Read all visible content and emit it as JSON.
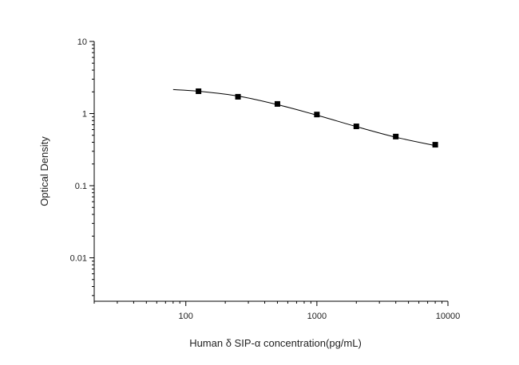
{
  "chart_data": {
    "type": "scatter",
    "x_label": "Human δ SIP-α  concentration(pg/mL)",
    "y_label": "Optical Density",
    "x_log": true,
    "y_log": true,
    "xlim": [
      20,
      10000
    ],
    "xticks": [
      100,
      1000,
      10000
    ],
    "ylim": [
      0.0025,
      10
    ],
    "yticks": [
      0.01,
      0.1,
      1,
      10
    ],
    "minor_ticks": true,
    "series": [
      {
        "kind": "marker",
        "color": "#000000",
        "x": [
          125,
          250,
          500,
          1000,
          2000,
          4000,
          8000
        ],
        "values": [
          2.04,
          1.71,
          1.36,
          0.97,
          0.665,
          0.48,
          0.37
        ]
      },
      {
        "kind": "curve",
        "color": "#000000",
        "x": [
          80,
          125,
          250,
          500,
          1000,
          2000,
          4000,
          8000
        ],
        "values": [
          2.15,
          2.04,
          1.75,
          1.33,
          0.95,
          0.66,
          0.47,
          0.36
        ]
      }
    ]
  }
}
